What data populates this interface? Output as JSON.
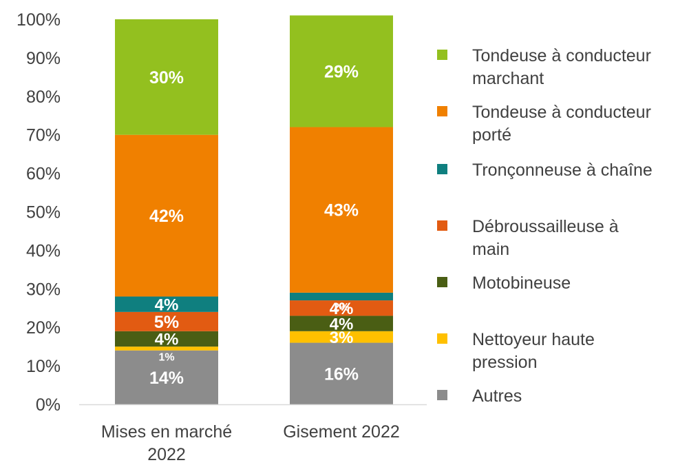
{
  "chart_data": {
    "type": "bar",
    "stacked": true,
    "percent_stacked": true,
    "title": "",
    "xlabel": "",
    "ylabel": "",
    "ylim": [
      0,
      100
    ],
    "y_ticks": [
      "0%",
      "10%",
      "20%",
      "30%",
      "40%",
      "50%",
      "60%",
      "70%",
      "80%",
      "90%",
      "100%"
    ],
    "grid": false,
    "legend_position": "right",
    "categories": [
      [
        "Mises en marché",
        "2022"
      ],
      [
        "Gisement 2022"
      ]
    ],
    "series": [
      {
        "name": "Autres",
        "color": "#8c8c8c",
        "values": [
          14,
          16
        ],
        "labels": [
          "14%",
          "16%"
        ]
      },
      {
        "name": "Nettoyeur haute pression",
        "color": "#ffc000",
        "values": [
          1,
          3
        ],
        "labels": [
          "1%",
          "3%"
        ]
      },
      {
        "name": "Motobineuse",
        "color": "#4a5e14",
        "values": [
          4,
          4
        ],
        "labels": [
          "4%",
          "4%"
        ]
      },
      {
        "name": "Débroussailleuse à main",
        "color": "#e25b12",
        "values": [
          5,
          4
        ],
        "labels": [
          "5%",
          "4%"
        ]
      },
      {
        "name": "Tronçonneuse à chaîne",
        "color": "#0f7f7f",
        "values": [
          4,
          2
        ],
        "labels": [
          "4%",
          "2%"
        ]
      },
      {
        "name": "Tondeuse à conducteur porté",
        "color": "#f08000",
        "values": [
          42,
          43
        ],
        "labels": [
          "42%",
          "43%"
        ]
      },
      {
        "name": "Tondeuse à conducteur marchant",
        "color": "#93c01f",
        "values": [
          30,
          29
        ],
        "labels": [
          "30%",
          "29%"
        ]
      }
    ],
    "legend": [
      {
        "lines": [
          "Tondeuse à conducteur",
          "marchant"
        ],
        "color": "#93c01f"
      },
      {
        "lines": [
          "Tondeuse à conducteur",
          "porté"
        ],
        "color": "#f08000"
      },
      {
        "lines": [
          "Tronçonneuse à chaîne"
        ],
        "color": "#0f7f7f"
      },
      {
        "lines": [
          "Débroussailleuse à",
          "main"
        ],
        "color": "#e25b12"
      },
      {
        "lines": [
          "Motobineuse"
        ],
        "color": "#4a5e14"
      },
      {
        "lines": [
          "Nettoyeur haute",
          "pression"
        ],
        "color": "#ffc000"
      },
      {
        "lines": [
          "Autres"
        ],
        "color": "#8c8c8c"
      }
    ]
  }
}
